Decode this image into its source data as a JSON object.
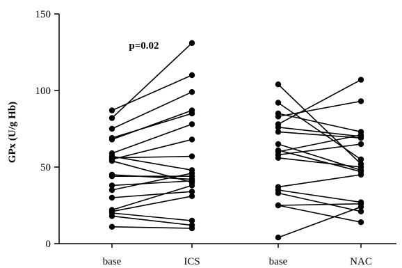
{
  "chart_data": {
    "type": "scatter",
    "style": "paired-points",
    "ylabel": "GPx (U/g Hb)",
    "xlabel": "",
    "title": "",
    "ylim": [
      0,
      150
    ],
    "yticks": [
      0,
      50,
      100,
      150
    ],
    "categories": [
      "base",
      "ICS",
      "base",
      "NAC"
    ],
    "annotation": "p=0.02",
    "color": "#000000",
    "groups": [
      {
        "from_category": "base",
        "to_category": "ICS",
        "pairs": [
          [
            87,
            110
          ],
          [
            82,
            131
          ],
          [
            75,
            99
          ],
          [
            69,
            85
          ],
          [
            68,
            87
          ],
          [
            59,
            78
          ],
          [
            57,
            48
          ],
          [
            56,
            57
          ],
          [
            55,
            68
          ],
          [
            54,
            40
          ],
          [
            45,
            42
          ],
          [
            44,
            44
          ],
          [
            38,
            41
          ],
          [
            35,
            46
          ],
          [
            30,
            34
          ],
          [
            22,
            38
          ],
          [
            21,
            31
          ],
          [
            20,
            15
          ],
          [
            18,
            12
          ],
          [
            11,
            10
          ]
        ]
      },
      {
        "from_category": "base",
        "to_category": "NAC",
        "pairs": [
          [
            104,
            52
          ],
          [
            92,
            55
          ],
          [
            85,
            73
          ],
          [
            83,
            93
          ],
          [
            78,
            107
          ],
          [
            76,
            70
          ],
          [
            73,
            69
          ],
          [
            65,
            48
          ],
          [
            61,
            47
          ],
          [
            60,
            71
          ],
          [
            58,
            65
          ],
          [
            56,
            50
          ],
          [
            37,
            45
          ],
          [
            35,
            27
          ],
          [
            33,
            21
          ],
          [
            25,
            14
          ],
          [
            25,
            26
          ],
          [
            4,
            24
          ]
        ]
      }
    ]
  }
}
